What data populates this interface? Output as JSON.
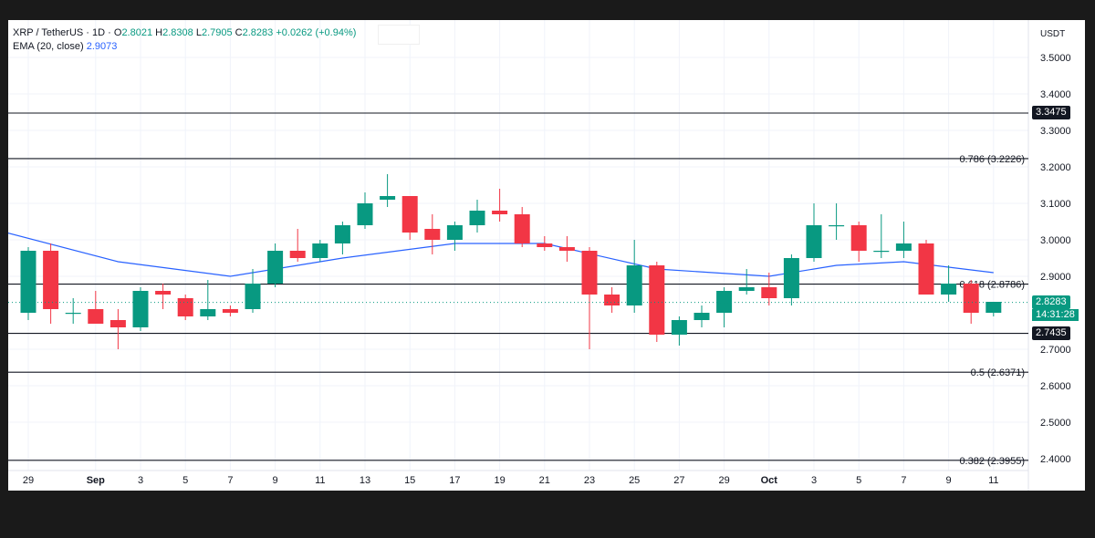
{
  "legend": {
    "symbol": "XRP / TetherUS · 1D ·",
    "open_label": "O",
    "open": "2.8021",
    "high_label": "H",
    "high": "2.8308",
    "low_label": "L",
    "low": "2.7905",
    "close_label": "C",
    "close": "2.8283",
    "change": "+0.0262 (+0.94%)",
    "ema_label": "EMA (20, close)",
    "ema_value": "2.9073"
  },
  "axis_unit": "USDT",
  "price_tags": {
    "resistance": "3.3475",
    "support": "2.7435",
    "last_price": "2.8283",
    "countdown": "14:31:28"
  },
  "colors": {
    "up": "#089981",
    "down": "#f23645",
    "ema": "#2962ff",
    "level_line": "#131722",
    "grid": "#f0f3fa"
  },
  "chart_data": {
    "type": "candlestick",
    "y_ticks": [
      "3.5000",
      "3.4000",
      "3.3000",
      "3.2000",
      "3.1000",
      "3.0000",
      "2.9000",
      "2.7000",
      "2.6000",
      "2.5000",
      "2.4000"
    ],
    "ylim": [
      2.37,
      3.53
    ],
    "x_ticks": [
      "29",
      "Sep",
      "3",
      "5",
      "7",
      "9",
      "11",
      "13",
      "15",
      "17",
      "19",
      "21",
      "23",
      "25",
      "27",
      "29",
      "Oct",
      "3",
      "5",
      "7",
      "9",
      "11"
    ],
    "x_tick_days": [
      0,
      3,
      5,
      7,
      9,
      11,
      13,
      15,
      17,
      19,
      21,
      23,
      25,
      27,
      29,
      31,
      33,
      35,
      37,
      39,
      41,
      43
    ],
    "levels": [
      {
        "price": 3.3475,
        "label": ""
      },
      {
        "price": 3.2226,
        "label": "0.786 (3.2226)"
      },
      {
        "price": 2.8786,
        "label": "0.618 (2.8786)"
      },
      {
        "price": 2.7435,
        "label": ""
      },
      {
        "price": 2.6371,
        "label": "0.5 (2.6371)"
      },
      {
        "price": 2.3955,
        "label": "0.382 (2.3955)"
      }
    ],
    "candles": [
      {
        "o": 2.8,
        "h": 2.98,
        "l": 2.78,
        "c": 2.97
      },
      {
        "o": 2.97,
        "h": 2.99,
        "l": 2.77,
        "c": 2.81
      },
      {
        "o": 2.8,
        "h": 2.84,
        "l": 2.77,
        "c": 2.8
      },
      {
        "o": 2.81,
        "h": 2.86,
        "l": 2.77,
        "c": 2.77
      },
      {
        "o": 2.78,
        "h": 2.81,
        "l": 2.7,
        "c": 2.76
      },
      {
        "o": 2.76,
        "h": 2.87,
        "l": 2.75,
        "c": 2.86
      },
      {
        "o": 2.86,
        "h": 2.88,
        "l": 2.81,
        "c": 2.85
      },
      {
        "o": 2.84,
        "h": 2.85,
        "l": 2.78,
        "c": 2.79
      },
      {
        "o": 2.79,
        "h": 2.89,
        "l": 2.78,
        "c": 2.81
      },
      {
        "o": 2.81,
        "h": 2.82,
        "l": 2.79,
        "c": 2.8
      },
      {
        "o": 2.81,
        "h": 2.92,
        "l": 2.8,
        "c": 2.88
      },
      {
        "o": 2.88,
        "h": 2.99,
        "l": 2.87,
        "c": 2.97
      },
      {
        "o": 2.97,
        "h": 3.03,
        "l": 2.94,
        "c": 2.95
      },
      {
        "o": 2.95,
        "h": 3.0,
        "l": 2.94,
        "c": 2.99
      },
      {
        "o": 2.99,
        "h": 3.05,
        "l": 2.96,
        "c": 3.04
      },
      {
        "o": 3.04,
        "h": 3.13,
        "l": 3.03,
        "c": 3.1
      },
      {
        "o": 3.11,
        "h": 3.18,
        "l": 3.09,
        "c": 3.12
      },
      {
        "o": 3.12,
        "h": 3.12,
        "l": 3.0,
        "c": 3.02
      },
      {
        "o": 3.03,
        "h": 3.07,
        "l": 2.96,
        "c": 3.0
      },
      {
        "o": 3.0,
        "h": 3.05,
        "l": 2.97,
        "c": 3.04
      },
      {
        "o": 3.04,
        "h": 3.11,
        "l": 3.02,
        "c": 3.08
      },
      {
        "o": 3.08,
        "h": 3.14,
        "l": 3.05,
        "c": 3.07
      },
      {
        "o": 3.07,
        "h": 3.09,
        "l": 2.98,
        "c": 2.99
      },
      {
        "o": 2.99,
        "h": 3.01,
        "l": 2.97,
        "c": 2.98
      },
      {
        "o": 2.98,
        "h": 3.01,
        "l": 2.94,
        "c": 2.97
      },
      {
        "o": 2.97,
        "h": 2.98,
        "l": 2.7,
        "c": 2.85
      },
      {
        "o": 2.85,
        "h": 2.87,
        "l": 2.8,
        "c": 2.82
      },
      {
        "o": 2.82,
        "h": 3.0,
        "l": 2.8,
        "c": 2.93
      },
      {
        "o": 2.93,
        "h": 2.94,
        "l": 2.72,
        "c": 2.74
      },
      {
        "o": 2.74,
        "h": 2.79,
        "l": 2.71,
        "c": 2.78
      },
      {
        "o": 2.78,
        "h": 2.82,
        "l": 2.76,
        "c": 2.8
      },
      {
        "o": 2.8,
        "h": 2.87,
        "l": 2.76,
        "c": 2.86
      },
      {
        "o": 2.86,
        "h": 2.92,
        "l": 2.85,
        "c": 2.87
      },
      {
        "o": 2.87,
        "h": 2.91,
        "l": 2.82,
        "c": 2.84
      },
      {
        "o": 2.84,
        "h": 2.96,
        "l": 2.82,
        "c": 2.95
      },
      {
        "o": 2.95,
        "h": 3.1,
        "l": 2.94,
        "c": 3.04
      },
      {
        "o": 3.04,
        "h": 3.1,
        "l": 3.0,
        "c": 3.04
      },
      {
        "o": 3.04,
        "h": 3.05,
        "l": 2.94,
        "c": 2.97
      },
      {
        "o": 2.97,
        "h": 3.07,
        "l": 2.95,
        "c": 2.97
      },
      {
        "o": 2.97,
        "h": 3.05,
        "l": 2.95,
        "c": 2.99
      },
      {
        "o": 2.99,
        "h": 3.0,
        "l": 2.85,
        "c": 2.85
      },
      {
        "o": 2.85,
        "h": 2.93,
        "l": 2.83,
        "c": 2.88
      },
      {
        "o": 2.88,
        "h": 2.89,
        "l": 2.77,
        "c": 2.8
      },
      {
        "o": 2.8,
        "h": 2.83,
        "l": 2.79,
        "c": 2.83
      }
    ],
    "ema": [
      {
        "day": -1,
        "v": 3.02
      },
      {
        "day": 4,
        "v": 2.94
      },
      {
        "day": 9,
        "v": 2.9
      },
      {
        "day": 14,
        "v": 2.95
      },
      {
        "day": 19,
        "v": 2.99
      },
      {
        "day": 23,
        "v": 2.99
      },
      {
        "day": 28,
        "v": 2.92
      },
      {
        "day": 33,
        "v": 2.9
      },
      {
        "day": 36,
        "v": 2.93
      },
      {
        "day": 39,
        "v": 2.94
      },
      {
        "day": 43,
        "v": 2.91
      }
    ],
    "last_price": 2.8283
  }
}
